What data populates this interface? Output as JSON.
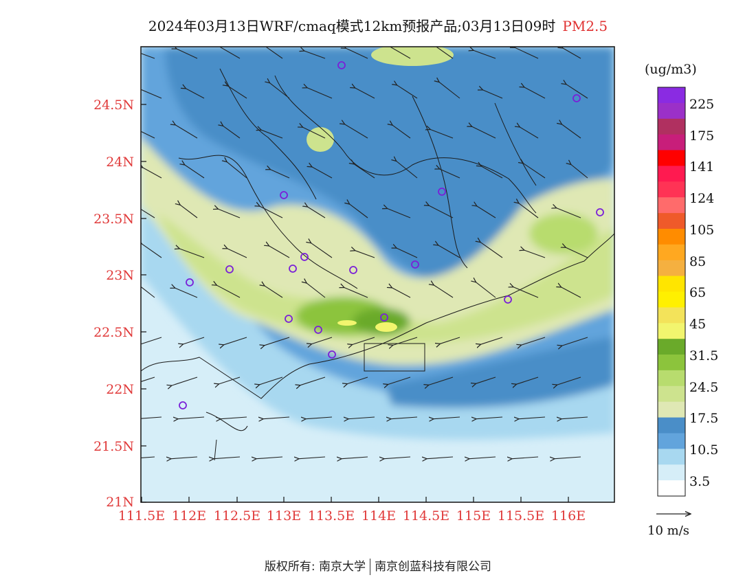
{
  "title": {
    "main": "2024年03月13日WRF/cmaq模式12km预报产品;03月13日09时",
    "pollutant": "PM2.5"
  },
  "axes": {
    "lat_ticks": [
      "24.5N",
      "24N",
      "23.5N",
      "23N",
      "22.5N",
      "22N",
      "21.5N",
      "21N"
    ],
    "lon_ticks": [
      "111.5E",
      "112E",
      "112.5E",
      "113E",
      "113.5E",
      "114E",
      "114.5E",
      "115E",
      "115.5E",
      "116E"
    ]
  },
  "colorbar": {
    "unit": "(ug/m3)",
    "labels": [
      "225",
      "175",
      "141",
      "124",
      "105",
      "85",
      "65",
      "45",
      "31.5",
      "24.5",
      "17.5",
      "10.5",
      "3.5"
    ],
    "colors": [
      "#8a2be2",
      "#9b30c8",
      "#b03060",
      "#c81e7a",
      "#ff0000",
      "#ff1a50",
      "#ff3355",
      "#ff6b6b",
      "#ef5a2a",
      "#ff8c00",
      "#ffa820",
      "#f5b040",
      "#ffe500",
      "#fff000",
      "#f3e35a",
      "#f2f56e",
      "#6aaa2a",
      "#8cc43c",
      "#b8dc6e",
      "#cde38e",
      "#dfe8b4",
      "#4a8ec8",
      "#62a4dc",
      "#a8d8f0",
      "#d6eef8",
      "#ffffff"
    ]
  },
  "wind_legend": {
    "label": "10 m/s"
  },
  "credit": {
    "left": "版权所有: 南京大学",
    "right": "南京创蓝科技有限公司"
  }
}
